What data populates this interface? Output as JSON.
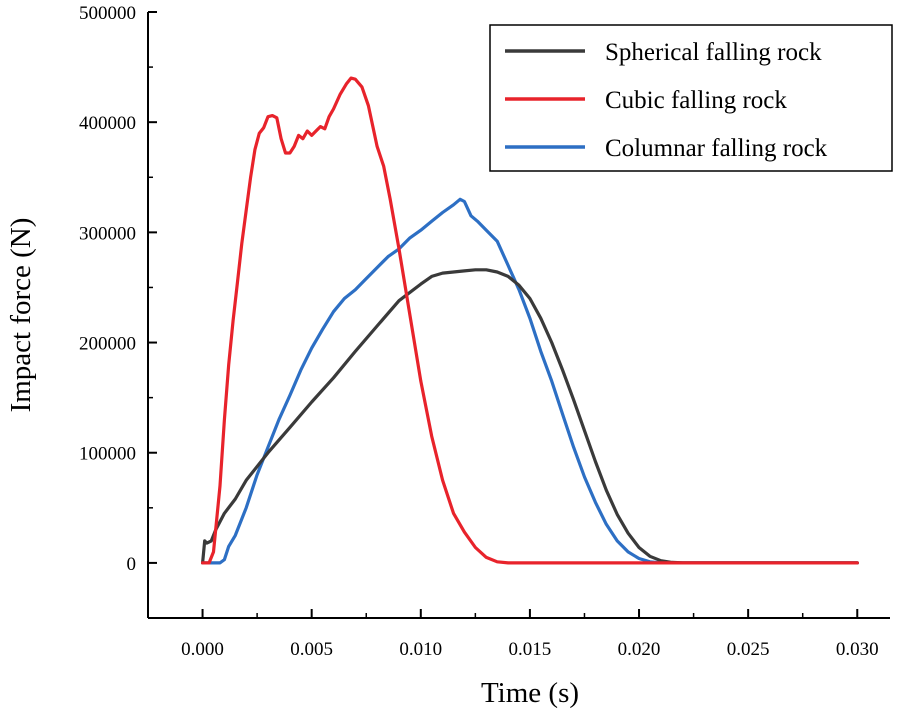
{
  "chart_data": {
    "type": "line",
    "title": "",
    "xlabel": "Time (s)",
    "ylabel": "Impact force (N)",
    "xlim": [
      -0.0025,
      0.0315
    ],
    "ylim": [
      -50000,
      500000
    ],
    "x_ticks": [
      0.0,
      0.005,
      0.01,
      0.015,
      0.02,
      0.025,
      0.03
    ],
    "x_tick_labels": [
      "0.000",
      "0.005",
      "0.010",
      "0.015",
      "0.020",
      "0.025",
      "0.030"
    ],
    "y_ticks": [
      0,
      100000,
      200000,
      300000,
      400000,
      500000
    ],
    "y_tick_labels": [
      "0",
      "100000",
      "200000",
      "300000",
      "400000",
      "500000"
    ],
    "grid": false,
    "legend_position": "top-right",
    "series": [
      {
        "name": "Spherical falling rock",
        "color": "#3a3a3a",
        "points": [
          [
            0.0,
            0
          ],
          [
            0.0001,
            20000
          ],
          [
            0.0002,
            18000
          ],
          [
            0.0004,
            20000
          ],
          [
            0.0006,
            30000
          ],
          [
            0.001,
            45000
          ],
          [
            0.0015,
            58000
          ],
          [
            0.002,
            75000
          ],
          [
            0.003,
            100000
          ],
          [
            0.004,
            123000
          ],
          [
            0.005,
            146000
          ],
          [
            0.006,
            168000
          ],
          [
            0.007,
            192000
          ],
          [
            0.008,
            215000
          ],
          [
            0.009,
            238000
          ],
          [
            0.01,
            253000
          ],
          [
            0.0105,
            260000
          ],
          [
            0.011,
            263000
          ],
          [
            0.0115,
            264000
          ],
          [
            0.012,
            265000
          ],
          [
            0.0125,
            266000
          ],
          [
            0.013,
            266000
          ],
          [
            0.0135,
            264000
          ],
          [
            0.014,
            260000
          ],
          [
            0.0145,
            252000
          ],
          [
            0.015,
            240000
          ],
          [
            0.0155,
            222000
          ],
          [
            0.016,
            200000
          ],
          [
            0.0165,
            175000
          ],
          [
            0.017,
            148000
          ],
          [
            0.0175,
            120000
          ],
          [
            0.018,
            92000
          ],
          [
            0.0185,
            66000
          ],
          [
            0.019,
            44000
          ],
          [
            0.0195,
            27000
          ],
          [
            0.02,
            14000
          ],
          [
            0.0205,
            6000
          ],
          [
            0.021,
            2000
          ],
          [
            0.0215,
            500
          ],
          [
            0.022,
            0
          ],
          [
            0.025,
            0
          ],
          [
            0.03,
            0
          ]
        ]
      },
      {
        "name": "Cubic falling rock",
        "color": "#e8232b",
        "points": [
          [
            0.0,
            0
          ],
          [
            0.0003,
            0
          ],
          [
            0.0005,
            10000
          ],
          [
            0.0008,
            70000
          ],
          [
            0.001,
            130000
          ],
          [
            0.0012,
            180000
          ],
          [
            0.0014,
            220000
          ],
          [
            0.0016,
            255000
          ],
          [
            0.0018,
            290000
          ],
          [
            0.002,
            320000
          ],
          [
            0.0022,
            350000
          ],
          [
            0.0024,
            375000
          ],
          [
            0.0026,
            390000
          ],
          [
            0.0028,
            395000
          ],
          [
            0.003,
            405000
          ],
          [
            0.0032,
            406000
          ],
          [
            0.0034,
            404000
          ],
          [
            0.0036,
            385000
          ],
          [
            0.0038,
            372000
          ],
          [
            0.004,
            372000
          ],
          [
            0.0042,
            378000
          ],
          [
            0.0044,
            388000
          ],
          [
            0.0046,
            385000
          ],
          [
            0.0048,
            392000
          ],
          [
            0.005,
            388000
          ],
          [
            0.0052,
            392000
          ],
          [
            0.0054,
            396000
          ],
          [
            0.0056,
            394000
          ],
          [
            0.0058,
            405000
          ],
          [
            0.006,
            412000
          ],
          [
            0.0063,
            425000
          ],
          [
            0.0066,
            435000
          ],
          [
            0.0068,
            440000
          ],
          [
            0.007,
            439000
          ],
          [
            0.0073,
            432000
          ],
          [
            0.0076,
            415000
          ],
          [
            0.008,
            378000
          ],
          [
            0.0083,
            360000
          ],
          [
            0.0086,
            330000
          ],
          [
            0.009,
            285000
          ],
          [
            0.0095,
            225000
          ],
          [
            0.01,
            165000
          ],
          [
            0.0105,
            115000
          ],
          [
            0.011,
            75000
          ],
          [
            0.0115,
            45000
          ],
          [
            0.012,
            28000
          ],
          [
            0.0125,
            14000
          ],
          [
            0.013,
            5000
          ],
          [
            0.0135,
            1000
          ],
          [
            0.014,
            0
          ],
          [
            0.02,
            0
          ],
          [
            0.03,
            0
          ]
        ]
      },
      {
        "name": "Columnar falling rock",
        "color": "#2d6fc4",
        "points": [
          [
            0.0,
            0
          ],
          [
            0.0008,
            0
          ],
          [
            0.001,
            3000
          ],
          [
            0.0012,
            15000
          ],
          [
            0.0015,
            25000
          ],
          [
            0.002,
            50000
          ],
          [
            0.0025,
            80000
          ],
          [
            0.003,
            105000
          ],
          [
            0.0035,
            130000
          ],
          [
            0.004,
            152000
          ],
          [
            0.0045,
            175000
          ],
          [
            0.005,
            195000
          ],
          [
            0.0055,
            212000
          ],
          [
            0.006,
            228000
          ],
          [
            0.0065,
            240000
          ],
          [
            0.007,
            248000
          ],
          [
            0.0075,
            258000
          ],
          [
            0.008,
            268000
          ],
          [
            0.0085,
            278000
          ],
          [
            0.009,
            285000
          ],
          [
            0.0095,
            295000
          ],
          [
            0.01,
            302000
          ],
          [
            0.0105,
            310000
          ],
          [
            0.011,
            318000
          ],
          [
            0.0115,
            325000
          ],
          [
            0.0118,
            330000
          ],
          [
            0.012,
            328000
          ],
          [
            0.0123,
            315000
          ],
          [
            0.0126,
            310000
          ],
          [
            0.013,
            302000
          ],
          [
            0.0135,
            292000
          ],
          [
            0.014,
            270000
          ],
          [
            0.0145,
            248000
          ],
          [
            0.015,
            222000
          ],
          [
            0.0155,
            192000
          ],
          [
            0.016,
            165000
          ],
          [
            0.0165,
            135000
          ],
          [
            0.017,
            105000
          ],
          [
            0.0175,
            78000
          ],
          [
            0.018,
            55000
          ],
          [
            0.0185,
            35000
          ],
          [
            0.019,
            20000
          ],
          [
            0.0195,
            10000
          ],
          [
            0.02,
            4000
          ],
          [
            0.0205,
            1000
          ],
          [
            0.021,
            0
          ],
          [
            0.025,
            0
          ],
          [
            0.03,
            0
          ]
        ]
      }
    ]
  }
}
